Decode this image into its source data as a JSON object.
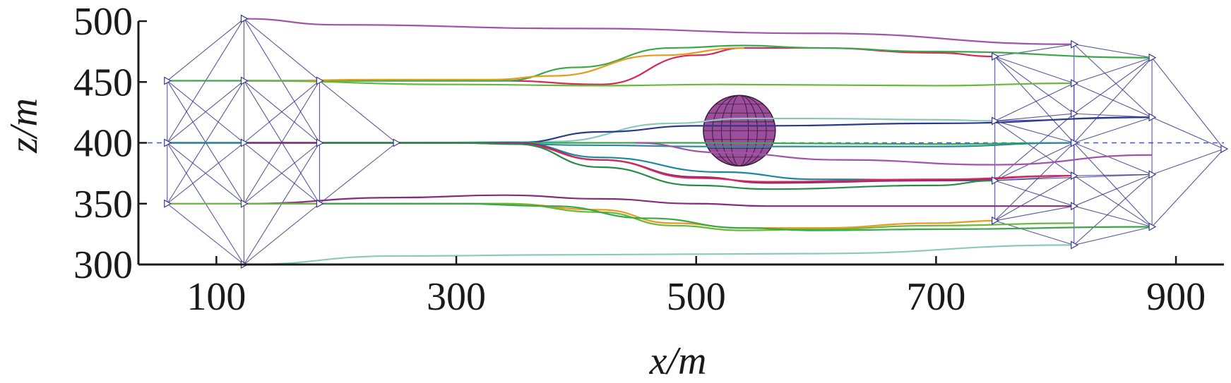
{
  "chart_data": {
    "type": "line",
    "title": "",
    "xlabel": "x/m",
    "ylabel": "z/m",
    "xlim": [
      35,
      940
    ],
    "ylim": [
      300,
      500
    ],
    "xticks": [
      100,
      300,
      500,
      700,
      900
    ],
    "yticks": [
      300,
      350,
      400,
      450,
      500
    ],
    "grid": false,
    "reference_line": {
      "z": 400,
      "style": "dashed",
      "color": "#4a5ab8"
    },
    "obstacle": {
      "shape": "sphere",
      "center_x": 536,
      "center_z": 410,
      "radius_x": 30,
      "radius_z": 29,
      "color": "#9b4f9b"
    },
    "formation_start": {
      "nodes": [
        {
          "x": 59,
          "z": 350
        },
        {
          "x": 59,
          "z": 400
        },
        {
          "x": 59,
          "z": 451
        },
        {
          "x": 123,
          "z": 300
        },
        {
          "x": 123,
          "z": 350
        },
        {
          "x": 123,
          "z": 400
        },
        {
          "x": 123,
          "z": 451
        },
        {
          "x": 123,
          "z": 502
        },
        {
          "x": 186,
          "z": 350
        },
        {
          "x": 186,
          "z": 400
        },
        {
          "x": 186,
          "z": 451
        },
        {
          "x": 250,
          "z": 400
        }
      ],
      "edges": [
        [
          0,
          1
        ],
        [
          1,
          2
        ],
        [
          0,
          4
        ],
        [
          1,
          5
        ],
        [
          2,
          6
        ],
        [
          3,
          4
        ],
        [
          4,
          5
        ],
        [
          5,
          6
        ],
        [
          6,
          7
        ],
        [
          8,
          9
        ],
        [
          9,
          10
        ],
        [
          4,
          8
        ],
        [
          5,
          9
        ],
        [
          6,
          10
        ],
        [
          0,
          3
        ],
        [
          2,
          7
        ],
        [
          3,
          8
        ],
        [
          7,
          10
        ],
        [
          1,
          4
        ],
        [
          1,
          6
        ],
        [
          4,
          9
        ],
        [
          6,
          9
        ],
        [
          0,
          5
        ],
        [
          2,
          5
        ],
        [
          5,
          8
        ],
        [
          5,
          10
        ],
        [
          9,
          11
        ],
        [
          8,
          11
        ],
        [
          10,
          11
        ],
        [
          1,
          3
        ],
        [
          1,
          7
        ],
        [
          9,
          3
        ],
        [
          9,
          7
        ],
        [
          0,
          6
        ],
        [
          2,
          4
        ],
        [
          4,
          10
        ],
        [
          6,
          8
        ]
      ]
    },
    "formation_end": {
      "nodes": [
        {
          "x": 749,
          "z": 336
        },
        {
          "x": 749,
          "z": 369
        },
        {
          "x": 749,
          "z": 418
        },
        {
          "x": 749,
          "z": 471
        },
        {
          "x": 815,
          "z": 316
        },
        {
          "x": 815,
          "z": 348
        },
        {
          "x": 815,
          "z": 373
        },
        {
          "x": 815,
          "z": 400
        },
        {
          "x": 815,
          "z": 424
        },
        {
          "x": 815,
          "z": 449
        },
        {
          "x": 815,
          "z": 481
        },
        {
          "x": 880,
          "z": 331
        },
        {
          "x": 880,
          "z": 374
        },
        {
          "x": 880,
          "z": 421
        },
        {
          "x": 880,
          "z": 470
        },
        {
          "x": 940,
          "z": 395
        }
      ],
      "edges": [
        [
          0,
          1
        ],
        [
          1,
          2
        ],
        [
          2,
          3
        ],
        [
          4,
          5
        ],
        [
          5,
          6
        ],
        [
          6,
          7
        ],
        [
          7,
          8
        ],
        [
          8,
          9
        ],
        [
          9,
          10
        ],
        [
          11,
          12
        ],
        [
          12,
          13
        ],
        [
          13,
          14
        ],
        [
          0,
          4
        ],
        [
          0,
          5
        ],
        [
          1,
          6
        ],
        [
          1,
          7
        ],
        [
          2,
          7
        ],
        [
          2,
          8
        ],
        [
          3,
          9
        ],
        [
          3,
          10
        ],
        [
          4,
          11
        ],
        [
          5,
          11
        ],
        [
          6,
          12
        ],
        [
          7,
          12
        ],
        [
          7,
          13
        ],
        [
          8,
          13
        ],
        [
          9,
          14
        ],
        [
          10,
          14
        ],
        [
          11,
          15
        ],
        [
          12,
          15
        ],
        [
          13,
          15
        ],
        [
          14,
          15
        ],
        [
          0,
          6
        ],
        [
          1,
          5
        ],
        [
          2,
          6
        ],
        [
          3,
          8
        ],
        [
          1,
          8
        ],
        [
          2,
          9
        ],
        [
          5,
          12
        ],
        [
          6,
          11
        ],
        [
          8,
          14
        ],
        [
          9,
          13
        ],
        [
          4,
          12
        ],
        [
          10,
          13
        ],
        [
          0,
          7
        ],
        [
          3,
          7
        ],
        [
          11,
          7
        ],
        [
          14,
          7
        ],
        [
          1,
          12
        ],
        [
          2,
          13
        ],
        [
          5,
          7
        ],
        [
          9,
          7
        ]
      ]
    },
    "series": [
      {
        "color": "#a055a8",
        "x": [
          123,
          200,
          400,
          600,
          815
        ],
        "z": [
          502,
          497,
          494,
          490,
          481
        ]
      },
      {
        "color": "#d42a5a",
        "x": [
          123,
          250,
          340,
          420,
          500,
          540,
          600,
          700,
          749
        ],
        "z": [
          451,
          451,
          451,
          448,
          472,
          478,
          478,
          474,
          471
        ]
      },
      {
        "color": "#3aa84a",
        "x": [
          59,
          250,
          340,
          400,
          480,
          540,
          600,
          700,
          880
        ],
        "z": [
          451,
          451,
          451,
          462,
          478,
          480,
          478,
          475,
          470
        ]
      },
      {
        "color": "#e89a20",
        "x": [
          123,
          250,
          330,
          380,
          470,
          540
        ],
        "z": [
          451,
          452,
          452,
          455,
          472,
          478
        ]
      },
      {
        "color": "#6ab83a",
        "x": [
          123,
          300,
          420,
          520,
          700,
          815
        ],
        "z": [
          451,
          448,
          447,
          448,
          447,
          449
        ]
      },
      {
        "color": "#8cc8c0",
        "x": [
          250,
          380,
          480,
          540,
          600,
          700,
          749
        ],
        "z": [
          400,
          401,
          416,
          420,
          420,
          419,
          418
        ]
      },
      {
        "color": "#2a3a8c",
        "x": [
          59,
          300,
          350,
          420,
          500,
          560,
          700,
          880
        ],
        "z": [
          400,
          400,
          400,
          409,
          414,
          414,
          416,
          421
        ]
      },
      {
        "color": "#3aa84a",
        "x": [
          59,
          300,
          500,
          700,
          815
        ],
        "z": [
          400,
          400,
          400,
          399,
          400
        ]
      },
      {
        "color": "#2a8aa0",
        "x": [
          123,
          300,
          420,
          500,
          600,
          700,
          815
        ],
        "z": [
          400,
          400,
          398,
          397,
          397,
          397,
          400
        ]
      },
      {
        "color": "#1a8a9a",
        "x": [
          59,
          300,
          350,
          420,
          520,
          600,
          749
        ],
        "z": [
          400,
          400,
          400,
          388,
          376,
          370,
          369
        ]
      },
      {
        "color": "#8a2a7a",
        "x": [
          123,
          300,
          350,
          420,
          500,
          560,
          700,
          815
        ],
        "z": [
          400,
          400,
          400,
          386,
          372,
          367,
          369,
          373
        ]
      },
      {
        "color": "#d42a5a",
        "x": [
          186,
          300,
          350,
          420,
          500,
          560,
          700,
          815
        ],
        "z": [
          400,
          400,
          399,
          386,
          371,
          368,
          370,
          373
        ]
      },
      {
        "color": "#2a8a4a",
        "x": [
          186,
          300,
          350,
          420,
          500,
          560,
          700,
          749
        ],
        "z": [
          400,
          400,
          399,
          380,
          365,
          362,
          365,
          369
        ]
      },
      {
        "color": "#a055a8",
        "x": [
          449,
          520,
          620,
          749,
          880
        ],
        "z": [
          400,
          392,
          386,
          382,
          390
        ]
      },
      {
        "color": "#8a2a7a",
        "x": [
          123,
          250,
          340,
          420,
          500,
          560,
          700,
          815
        ],
        "z": [
          350,
          355,
          357,
          354,
          350,
          348,
          348,
          348
        ]
      },
      {
        "color": "#e89a20",
        "x": [
          123,
          250,
          340,
          420,
          480,
          540,
          600,
          700,
          749
        ],
        "z": [
          350,
          350,
          350,
          345,
          334,
          330,
          330,
          334,
          336
        ]
      },
      {
        "color": "#6ab83a",
        "x": [
          59,
          250,
          340,
          420,
          480,
          540,
          600,
          700,
          815
        ],
        "z": [
          350,
          350,
          350,
          343,
          332,
          328,
          329,
          332,
          334
        ]
      },
      {
        "color": "#3aa84a",
        "x": [
          186,
          300,
          380,
          460,
          540,
          600,
          700,
          880
        ],
        "z": [
          350,
          350,
          348,
          338,
          330,
          328,
          329,
          331
        ]
      },
      {
        "color": "#8cc8c0",
        "x": [
          123,
          250,
          400,
          600,
          815
        ],
        "z": [
          300,
          307,
          308,
          309,
          316
        ]
      }
    ]
  }
}
